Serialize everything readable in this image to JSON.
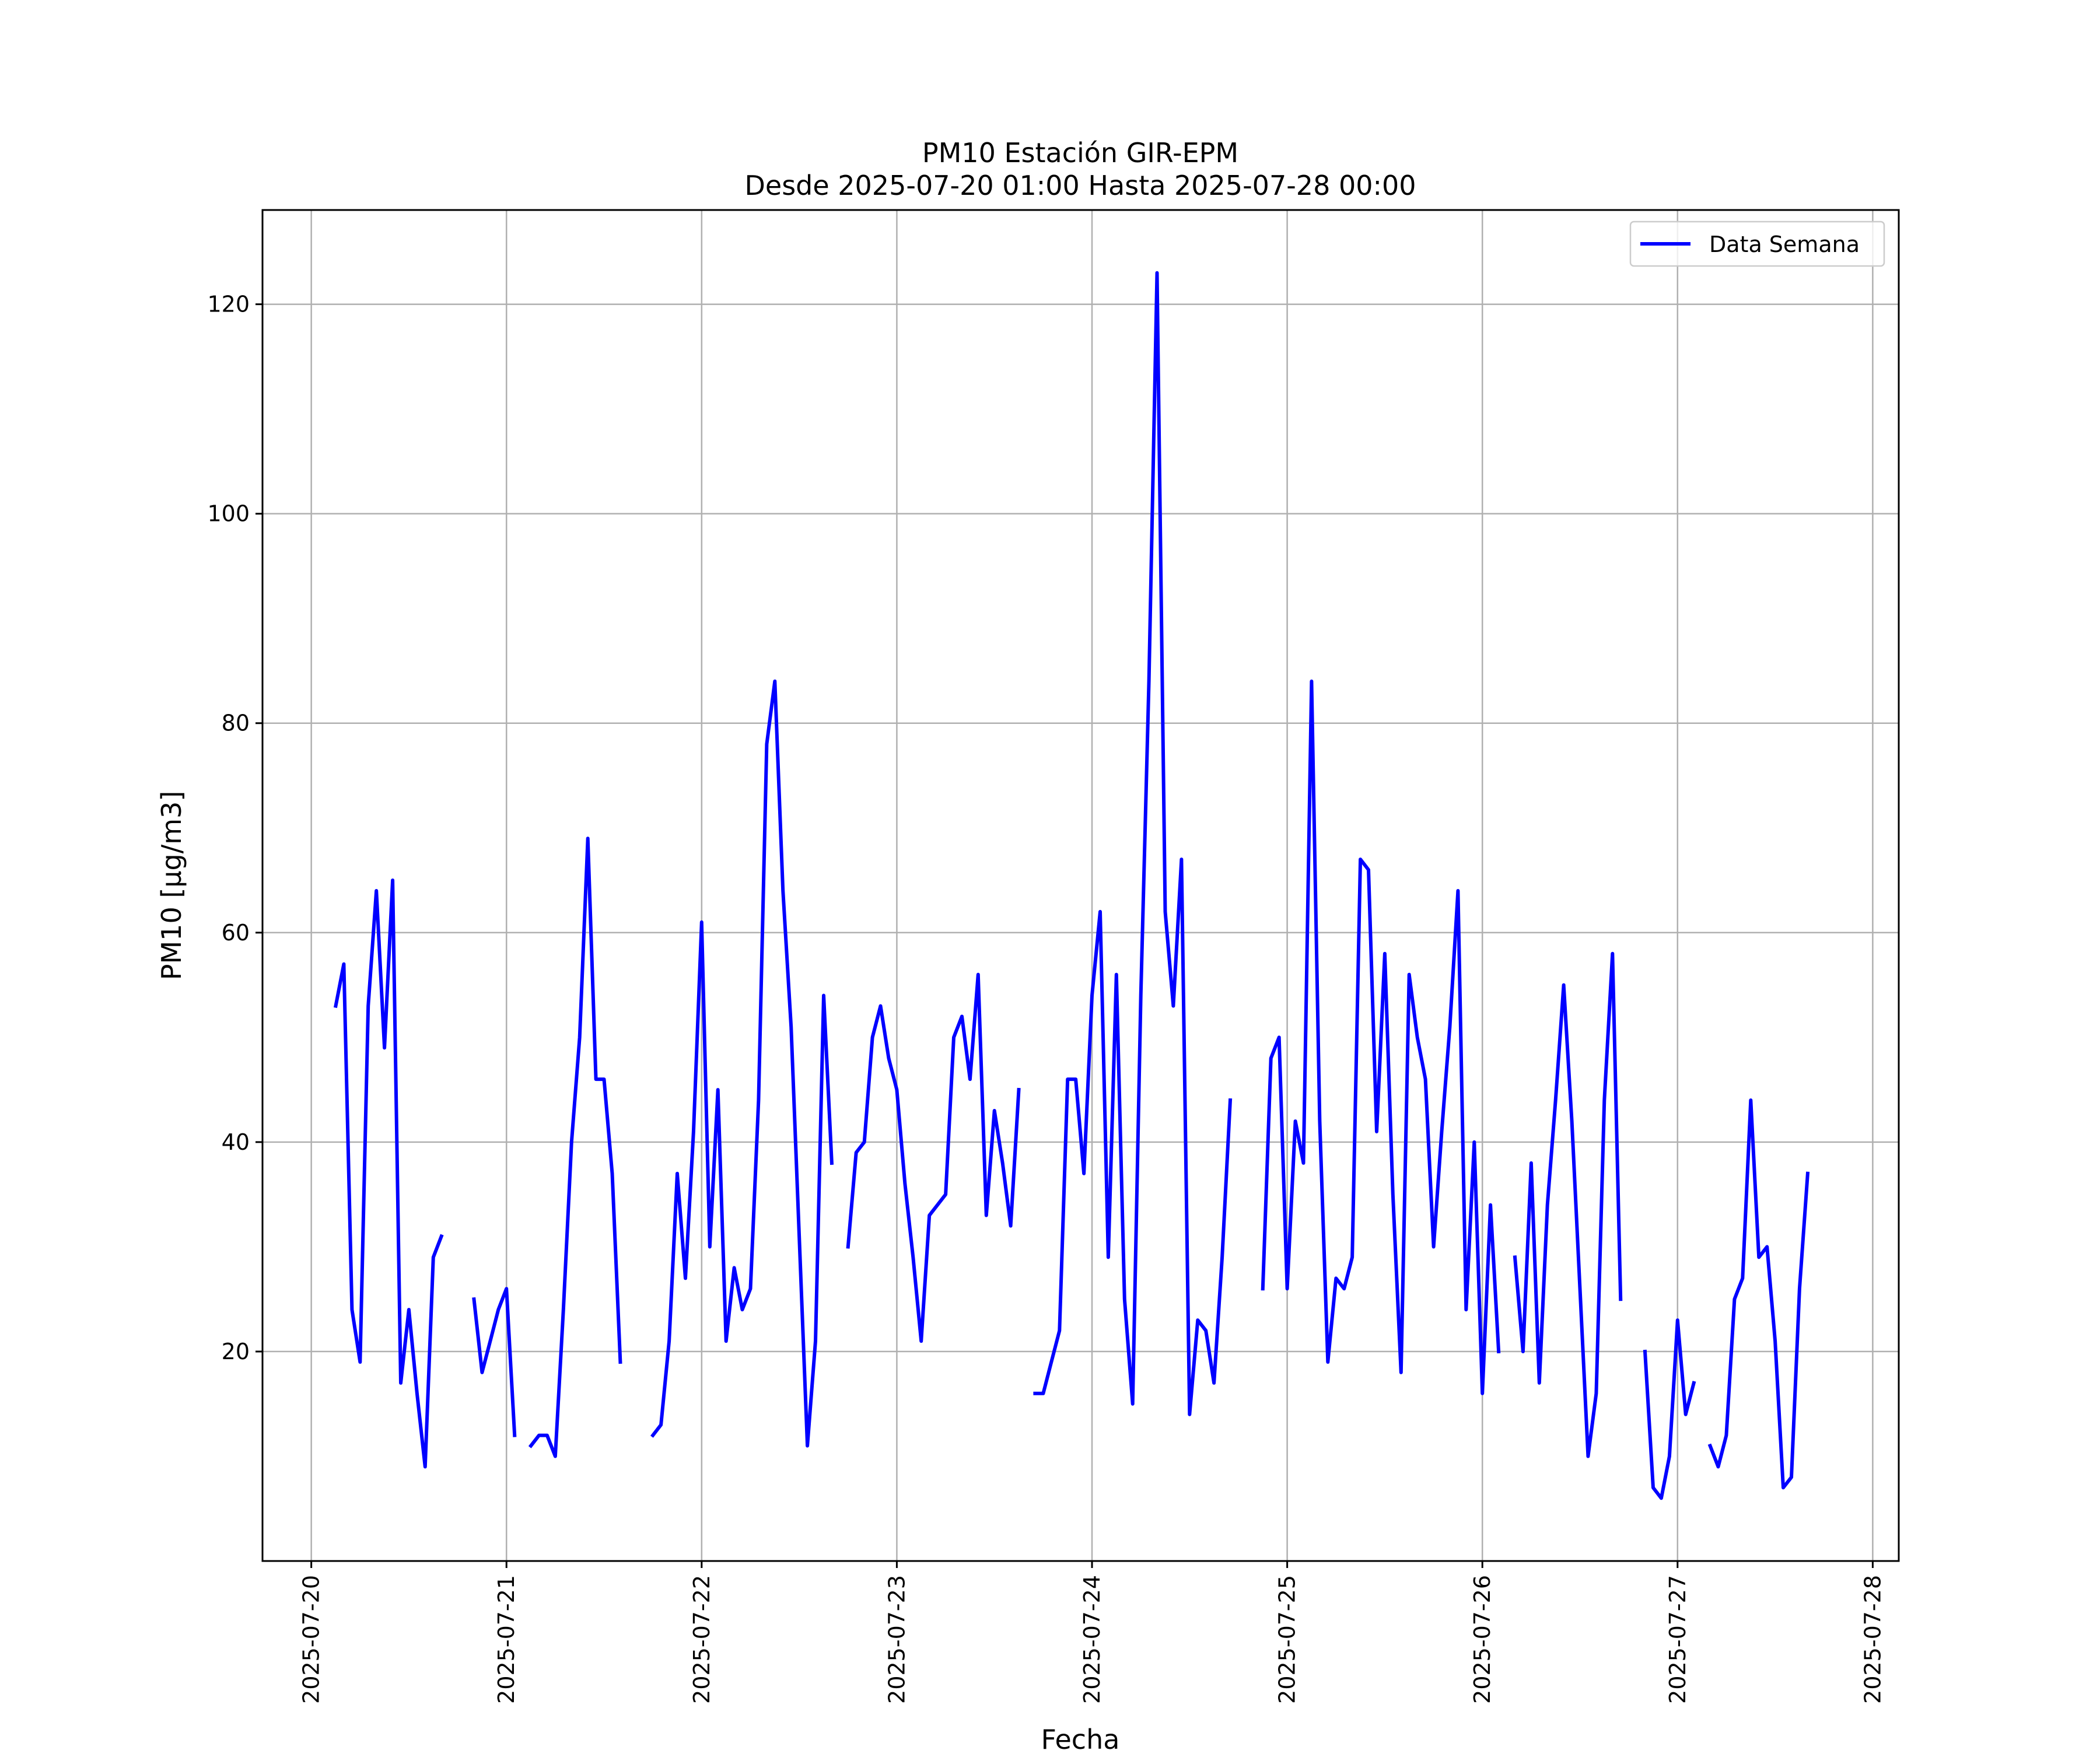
{
  "chart_data": {
    "type": "line",
    "title": "PM10 Estación GIR-EPM",
    "subtitle": "Desde 2025-07-20 01:00 Hasta 2025-07-28 00:00",
    "xlabel": "Fecha",
    "ylabel": "PM10 [μg/m3]",
    "xlim": [
      "2025-07-19 18:00",
      "2025-07-28 03:12"
    ],
    "ylim": [
      0,
      129
    ],
    "x_ticks": [
      "2025-07-20",
      "2025-07-21",
      "2025-07-22",
      "2025-07-23",
      "2025-07-24",
      "2025-07-25",
      "2025-07-26",
      "2025-07-27",
      "2025-07-28"
    ],
    "y_ticks": [
      20,
      40,
      60,
      80,
      100,
      120
    ],
    "grid": true,
    "legend_position": "top-right",
    "series": [
      {
        "name": "Data Semana",
        "color": "#0000ff",
        "points": [
          [
            "2025-07-20 03:00",
            53
          ],
          [
            "2025-07-20 04:00",
            57
          ],
          [
            "2025-07-20 05:00",
            24
          ],
          [
            "2025-07-20 06:00",
            19
          ],
          [
            "2025-07-20 07:00",
            53
          ],
          [
            "2025-07-20 08:00",
            64
          ],
          [
            "2025-07-20 09:00",
            49
          ],
          [
            "2025-07-20 10:00",
            65
          ],
          [
            "2025-07-20 11:00",
            17
          ],
          [
            "2025-07-20 12:00",
            24
          ],
          [
            "2025-07-20 13:00",
            16
          ],
          [
            "2025-07-20 14:00",
            9
          ],
          [
            "2025-07-20 15:00",
            29
          ],
          [
            "2025-07-20 16:00",
            31
          ],
          null,
          [
            "2025-07-20 20:00",
            25
          ],
          [
            "2025-07-20 21:00",
            18
          ],
          [
            "2025-07-20 22:00",
            21
          ],
          [
            "2025-07-20 23:00",
            24
          ],
          [
            "2025-07-21 00:00",
            26
          ],
          [
            "2025-07-21 01:00",
            12
          ],
          null,
          [
            "2025-07-21 03:00",
            11
          ],
          [
            "2025-07-21 04:00",
            12
          ],
          [
            "2025-07-21 05:00",
            12
          ],
          [
            "2025-07-21 06:00",
            10
          ],
          [
            "2025-07-21 07:00",
            24
          ],
          [
            "2025-07-21 08:00",
            40
          ],
          [
            "2025-07-21 09:00",
            50
          ],
          [
            "2025-07-21 10:00",
            69
          ],
          [
            "2025-07-21 11:00",
            46
          ],
          [
            "2025-07-21 12:00",
            46
          ],
          [
            "2025-07-21 13:00",
            37
          ],
          [
            "2025-07-21 14:00",
            19
          ],
          null,
          [
            "2025-07-21 18:00",
            12
          ],
          [
            "2025-07-21 19:00",
            13
          ],
          [
            "2025-07-21 20:00",
            21
          ],
          [
            "2025-07-21 21:00",
            37
          ],
          [
            "2025-07-21 22:00",
            27
          ],
          [
            "2025-07-21 23:00",
            41
          ],
          [
            "2025-07-22 00:00",
            61
          ],
          [
            "2025-07-22 01:00",
            30
          ],
          [
            "2025-07-22 02:00",
            45
          ],
          [
            "2025-07-22 03:00",
            21
          ],
          [
            "2025-07-22 04:00",
            28
          ],
          [
            "2025-07-22 05:00",
            24
          ],
          [
            "2025-07-22 06:00",
            26
          ],
          [
            "2025-07-22 07:00",
            44
          ],
          [
            "2025-07-22 08:00",
            78
          ],
          [
            "2025-07-22 09:00",
            84
          ],
          [
            "2025-07-22 10:00",
            64
          ],
          [
            "2025-07-22 11:00",
            51
          ],
          [
            "2025-07-22 12:00",
            31
          ],
          [
            "2025-07-22 13:00",
            11
          ],
          [
            "2025-07-22 14:00",
            21
          ],
          [
            "2025-07-22 15:00",
            54
          ],
          [
            "2025-07-22 16:00",
            38
          ],
          null,
          [
            "2025-07-22 18:00",
            30
          ],
          [
            "2025-07-22 19:00",
            39
          ],
          [
            "2025-07-22 20:00",
            40
          ],
          [
            "2025-07-22 21:00",
            50
          ],
          [
            "2025-07-22 22:00",
            53
          ],
          [
            "2025-07-22 23:00",
            48
          ],
          [
            "2025-07-23 00:00",
            45
          ],
          [
            "2025-07-23 01:00",
            36
          ],
          [
            "2025-07-23 02:00",
            29
          ],
          [
            "2025-07-23 03:00",
            21
          ],
          [
            "2025-07-23 04:00",
            33
          ],
          [
            "2025-07-23 05:00",
            34
          ],
          [
            "2025-07-23 06:00",
            35
          ],
          [
            "2025-07-23 07:00",
            50
          ],
          [
            "2025-07-23 08:00",
            52
          ],
          [
            "2025-07-23 09:00",
            46
          ],
          [
            "2025-07-23 10:00",
            56
          ],
          [
            "2025-07-23 11:00",
            33
          ],
          [
            "2025-07-23 12:00",
            43
          ],
          [
            "2025-07-23 13:00",
            38
          ],
          [
            "2025-07-23 14:00",
            32
          ],
          [
            "2025-07-23 15:00",
            45
          ],
          null,
          [
            "2025-07-23 17:00",
            16
          ],
          [
            "2025-07-23 18:00",
            16
          ],
          [
            "2025-07-23 19:00",
            19
          ],
          [
            "2025-07-23 20:00",
            22
          ],
          [
            "2025-07-23 21:00",
            46
          ],
          [
            "2025-07-23 22:00",
            46
          ],
          [
            "2025-07-23 23:00",
            37
          ],
          [
            "2025-07-24 00:00",
            54
          ],
          [
            "2025-07-24 01:00",
            62
          ],
          [
            "2025-07-24 02:00",
            29
          ],
          [
            "2025-07-24 03:00",
            56
          ],
          [
            "2025-07-24 04:00",
            25
          ],
          [
            "2025-07-24 05:00",
            15
          ],
          [
            "2025-07-24 06:00",
            54
          ],
          [
            "2025-07-24 07:00",
            84
          ],
          [
            "2025-07-24 08:00",
            123
          ],
          [
            "2025-07-24 09:00",
            62
          ],
          [
            "2025-07-24 10:00",
            53
          ],
          [
            "2025-07-24 11:00",
            67
          ],
          [
            "2025-07-24 12:00",
            14
          ],
          [
            "2025-07-24 13:00",
            23
          ],
          [
            "2025-07-24 14:00",
            22
          ],
          [
            "2025-07-24 15:00",
            17
          ],
          [
            "2025-07-24 16:00",
            29
          ],
          [
            "2025-07-24 17:00",
            44
          ],
          null,
          [
            "2025-07-24 21:00",
            26
          ],
          [
            "2025-07-24 22:00",
            48
          ],
          [
            "2025-07-24 23:00",
            50
          ],
          [
            "2025-07-25 00:00",
            26
          ],
          [
            "2025-07-25 01:00",
            42
          ],
          [
            "2025-07-25 02:00",
            38
          ],
          [
            "2025-07-25 03:00",
            84
          ],
          [
            "2025-07-25 04:00",
            42
          ],
          [
            "2025-07-25 05:00",
            19
          ],
          [
            "2025-07-25 06:00",
            27
          ],
          [
            "2025-07-25 07:00",
            26
          ],
          [
            "2025-07-25 08:00",
            29
          ],
          [
            "2025-07-25 09:00",
            67
          ],
          [
            "2025-07-25 10:00",
            66
          ],
          [
            "2025-07-25 11:00",
            41
          ],
          [
            "2025-07-25 12:00",
            58
          ],
          [
            "2025-07-25 13:00",
            35
          ],
          [
            "2025-07-25 14:00",
            18
          ],
          [
            "2025-07-25 15:00",
            56
          ],
          [
            "2025-07-25 16:00",
            50
          ],
          [
            "2025-07-25 17:00",
            46
          ],
          [
            "2025-07-25 18:00",
            30
          ],
          [
            "2025-07-25 19:00",
            41
          ],
          [
            "2025-07-25 20:00",
            51
          ],
          [
            "2025-07-25 21:00",
            64
          ],
          [
            "2025-07-25 22:00",
            24
          ],
          [
            "2025-07-25 23:00",
            40
          ],
          [
            "2025-07-26 00:00",
            16
          ],
          [
            "2025-07-26 01:00",
            34
          ],
          [
            "2025-07-26 02:00",
            20
          ],
          null,
          [
            "2025-07-26 04:00",
            29
          ],
          [
            "2025-07-26 05:00",
            20
          ],
          [
            "2025-07-26 06:00",
            38
          ],
          [
            "2025-07-26 07:00",
            17
          ],
          [
            "2025-07-26 08:00",
            34
          ],
          [
            "2025-07-26 09:00",
            44
          ],
          [
            "2025-07-26 10:00",
            55
          ],
          [
            "2025-07-26 11:00",
            42
          ],
          [
            "2025-07-26 12:00",
            26
          ],
          [
            "2025-07-26 13:00",
            10
          ],
          [
            "2025-07-26 14:00",
            16
          ],
          [
            "2025-07-26 15:00",
            44
          ],
          [
            "2025-07-26 16:00",
            58
          ],
          [
            "2025-07-26 17:00",
            25
          ],
          null,
          [
            "2025-07-26 20:00",
            20
          ],
          [
            "2025-07-26 21:00",
            7
          ],
          [
            "2025-07-26 22:00",
            6
          ],
          [
            "2025-07-26 23:00",
            10
          ],
          [
            "2025-07-27 00:00",
            23
          ],
          [
            "2025-07-27 01:00",
            14
          ],
          [
            "2025-07-27 02:00",
            17
          ],
          null,
          [
            "2025-07-27 04:00",
            11
          ],
          [
            "2025-07-27 05:00",
            9
          ],
          [
            "2025-07-27 06:00",
            12
          ],
          [
            "2025-07-27 07:00",
            25
          ],
          [
            "2025-07-27 08:00",
            27
          ],
          [
            "2025-07-27 09:00",
            44
          ],
          [
            "2025-07-27 10:00",
            29
          ],
          [
            "2025-07-27 11:00",
            30
          ],
          [
            "2025-07-27 12:00",
            21
          ],
          [
            "2025-07-27 13:00",
            7
          ],
          [
            "2025-07-27 14:00",
            8
          ],
          [
            "2025-07-27 15:00",
            26
          ],
          [
            "2025-07-27 16:00",
            37
          ]
        ]
      }
    ]
  }
}
